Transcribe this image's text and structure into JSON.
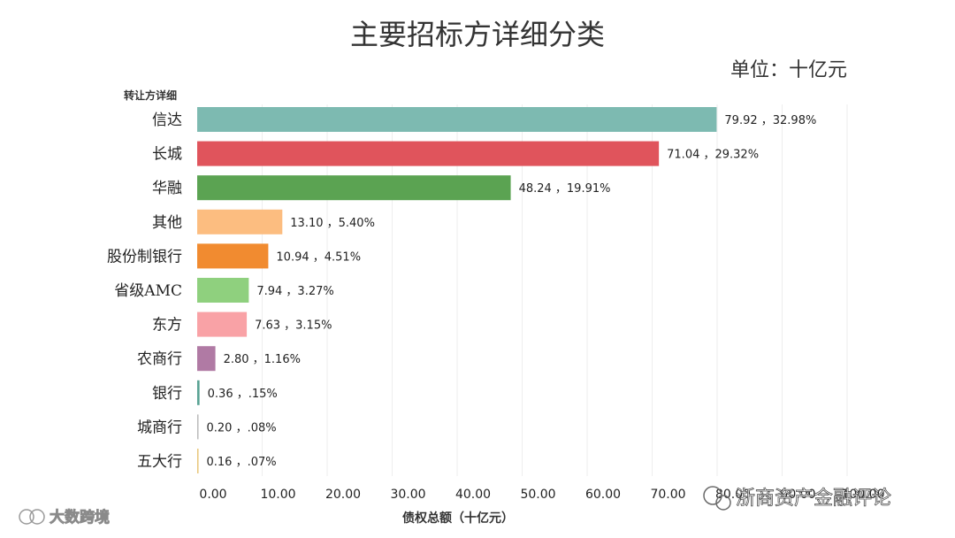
{
  "watermarks": {
    "left": "大数跨境",
    "right": "浙商资产金融评论"
  },
  "chart_data": {
    "type": "bar",
    "orientation": "horizontal",
    "title": "主要招标方详细分类",
    "unit": "单位：十亿元",
    "dimension_title": "转让方详细",
    "xlabel": "债权总额（十亿元）",
    "xlim": [
      0,
      100
    ],
    "x_ticks": [
      "0.00",
      "10.00",
      "20.00",
      "30.00",
      "40.00",
      "50.00",
      "60.00",
      "70.00",
      "80.00",
      "90.00",
      "100.00"
    ],
    "grid": true,
    "categories": [
      "信达",
      "长城",
      "华融",
      "其他",
      "股份制银行",
      "省级AMC",
      "东方",
      "农商行",
      "银行",
      "城商行",
      "五大行"
    ],
    "values": [
      79.92,
      71.04,
      48.24,
      13.1,
      10.94,
      7.94,
      7.63,
      2.8,
      0.36,
      0.2,
      0.16
    ],
    "data_labels": [
      "79.92 ，32.98%",
      "71.04 ，29.32%",
      "48.24 ，19.91%",
      "13.10 ，5.40%",
      "10.94 ，4.51%",
      "7.94 ，3.27%",
      "7.63 ，3.15%",
      "2.80 ，1.16%",
      "0.36 ，.15%",
      "0.20 ，.08%",
      "0.16 ，.07%"
    ],
    "colors": [
      "#7dbab1",
      "#e0545c",
      "#5ba352",
      "#fcbd80",
      "#f18b30",
      "#8fd07e",
      "#f9a2a6",
      "#b07aa4",
      "#5aa394",
      "#bbbbbb",
      "#e8c77a"
    ]
  }
}
